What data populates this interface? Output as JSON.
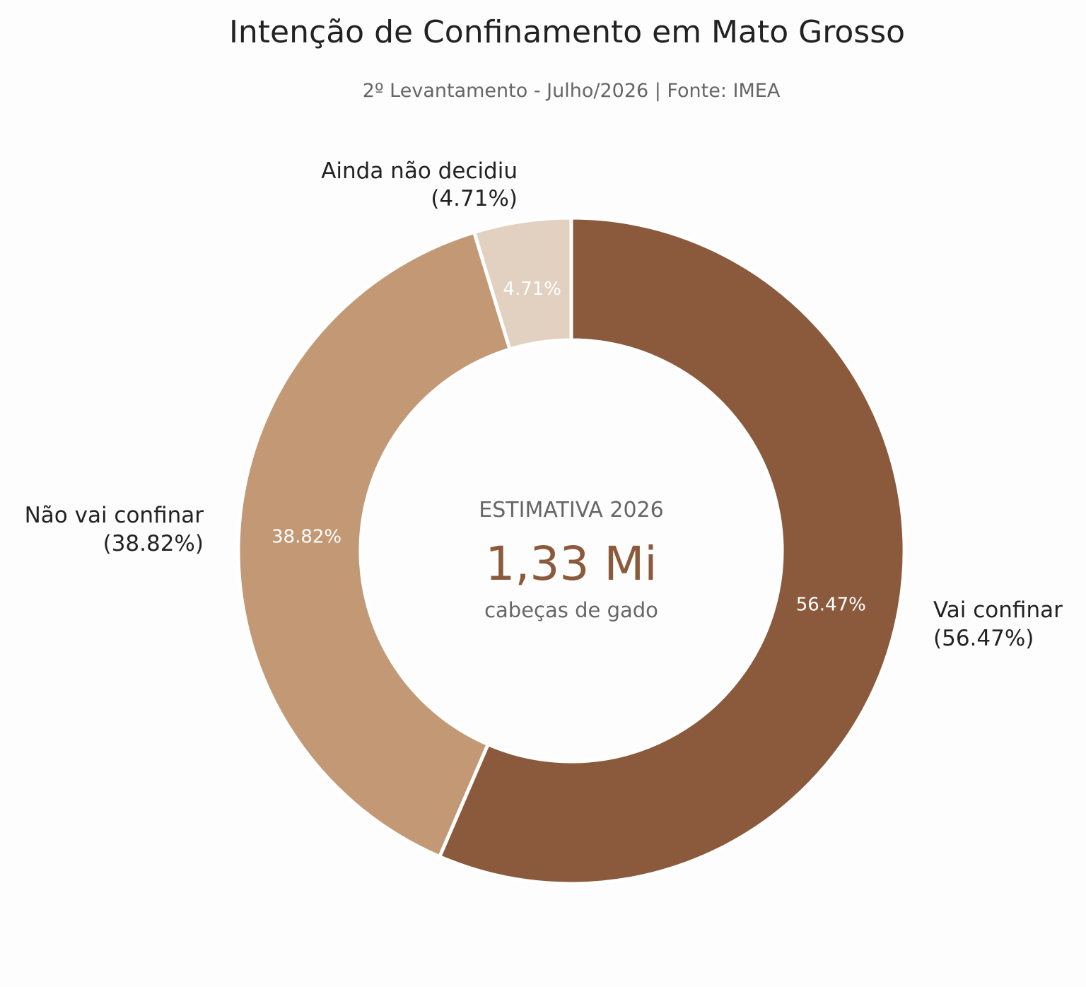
{
  "chart_data": {
    "type": "pie",
    "title": "Intenção de Confinamento em Mato Grosso",
    "subtitle": "2º Levantamento - Julho/2026 | Fonte: IMEA",
    "slices": [
      {
        "label": "Vai confinar",
        "value": 56.47,
        "value_label": "56.47%",
        "outer_label": "(56.47%)",
        "color": "#8b5a3c",
        "inner_text_color": "#ffffff"
      },
      {
        "label": "Não vai confinar",
        "value": 38.82,
        "value_label": "38.82%",
        "outer_label": "(38.82%)",
        "color": "#c39875",
        "inner_text_color": "#ffffff"
      },
      {
        "label": "Ainda não decidiu",
        "value": 4.71,
        "value_label": "4.71%",
        "outer_label": "(4.71%)",
        "color": "#e2d1c0",
        "inner_text_color": "#ffffff"
      }
    ],
    "center": {
      "caption": "ESTIMATIVA 2026",
      "value": "1,33 Mi",
      "unit": "cabeças de gado"
    }
  }
}
